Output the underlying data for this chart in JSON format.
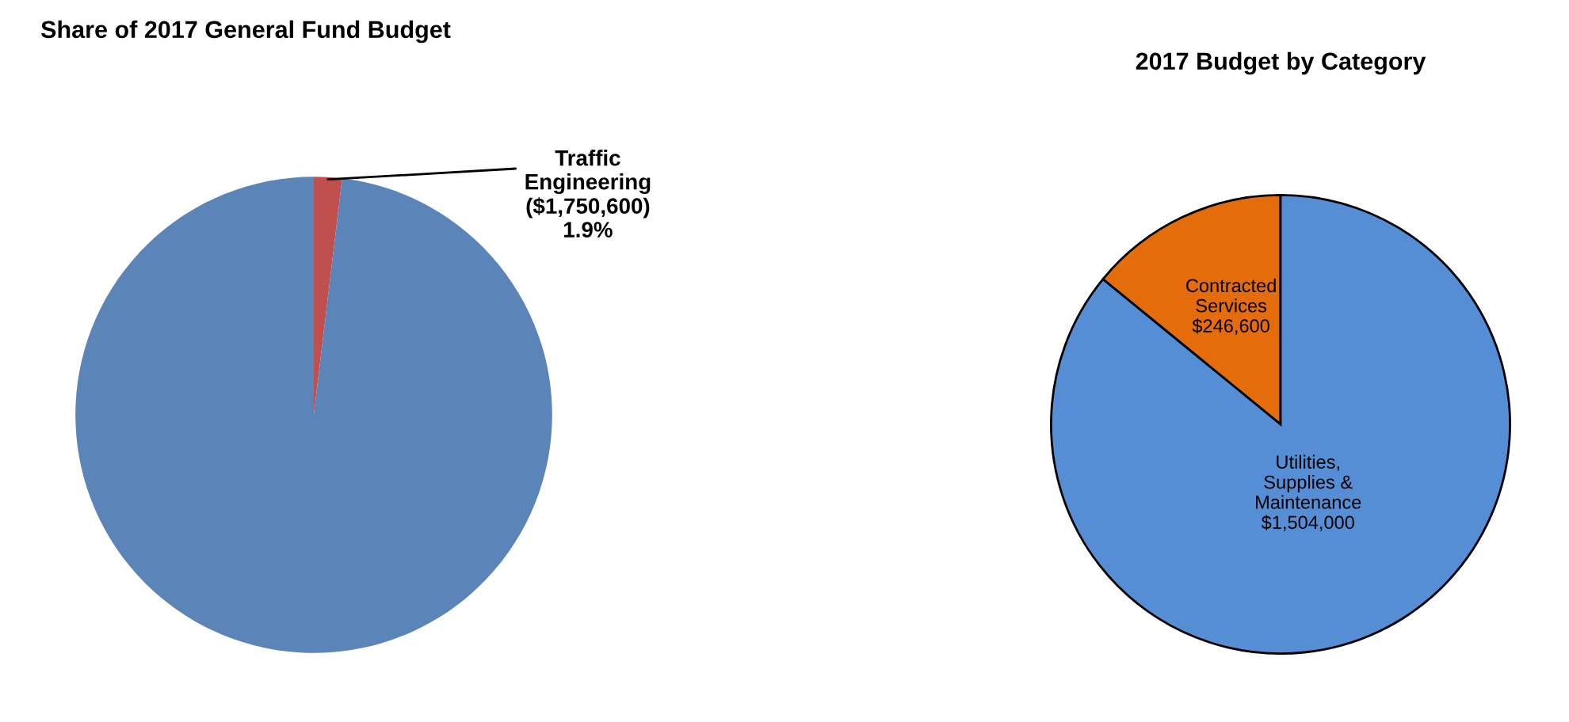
{
  "chart_data": [
    {
      "type": "pie",
      "title": "Share of 2017 General Fund Budget",
      "categories": [
        "Traffic\nEngineering",
        null
      ],
      "values": [
        1.9,
        98.1
      ],
      "colors": [
        "#c0504d",
        "#5b84b8"
      ],
      "value_labels": [
        "($1,750,600)\n1.9%",
        null
      ]
    },
    {
      "type": "pie",
      "title": "2017 Budget by Category",
      "categories": [
        "Contracted\nServices",
        "Utilities,\nSupplies &\nMaintenance"
      ],
      "values": [
        246600,
        1504000
      ],
      "colors": [
        "#e46c0a",
        "#558ed5"
      ],
      "value_labels": [
        "$246,600",
        "$1,504,000"
      ]
    }
  ]
}
